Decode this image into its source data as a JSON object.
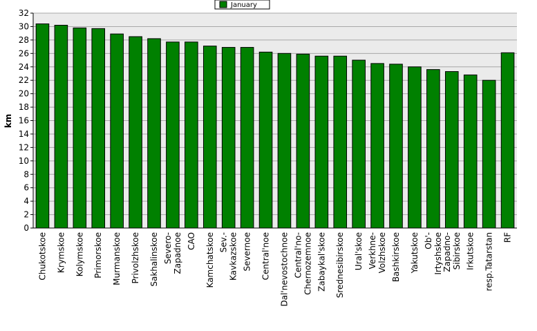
{
  "chart_data": {
    "type": "bar",
    "title": "",
    "xlabel": "",
    "ylabel": "km",
    "ylim": [
      0,
      32
    ],
    "ytick_step": 2,
    "grid": true,
    "legend_position": "top-center",
    "bar_color": "#008000",
    "plot_background": "#ebebeb",
    "categories": [
      [
        "Chukotskoe"
      ],
      [
        "Krymskoe"
      ],
      [
        "Kolymskoe"
      ],
      [
        "Primorskoe"
      ],
      [
        "Murmanskoe"
      ],
      [
        "Privolzhskoe"
      ],
      [
        "Sakhalinskoe"
      ],
      [
        "Severo-",
        "Zapadnoe"
      ],
      [
        "CAO"
      ],
      [
        "Kamchatskoe"
      ],
      [
        "Sev.-",
        "Kavkazskoe"
      ],
      [
        "Severnoe"
      ],
      [
        "Central'noe"
      ],
      [
        "Dal'nevostochnoe"
      ],
      [
        "Central'no-",
        "Chernozemnoe"
      ],
      [
        "Zabaykal'skoe"
      ],
      [
        "Srednesibirskoe"
      ],
      [
        "Ural'skoe"
      ],
      [
        "Verkhne-",
        "Volzhskoe"
      ],
      [
        "Bashkirskoe"
      ],
      [
        "Yakutskoe"
      ],
      [
        "Ob'-",
        "Irtyshskoe"
      ],
      [
        "Zapadno-",
        "Sibirskoe"
      ],
      [
        "Irkutskoe"
      ],
      [
        "resp.Tatarstan"
      ],
      [
        "RF"
      ]
    ],
    "series": [
      {
        "name": "January",
        "values": [
          30.4,
          30.2,
          29.8,
          29.7,
          28.9,
          28.5,
          28.2,
          27.7,
          27.7,
          27.1,
          26.9,
          26.9,
          26.2,
          26.0,
          25.9,
          25.6,
          25.6,
          25.0,
          24.5,
          24.4,
          24.0,
          23.6,
          23.3,
          22.8,
          22.0,
          26.1
        ]
      }
    ]
  }
}
